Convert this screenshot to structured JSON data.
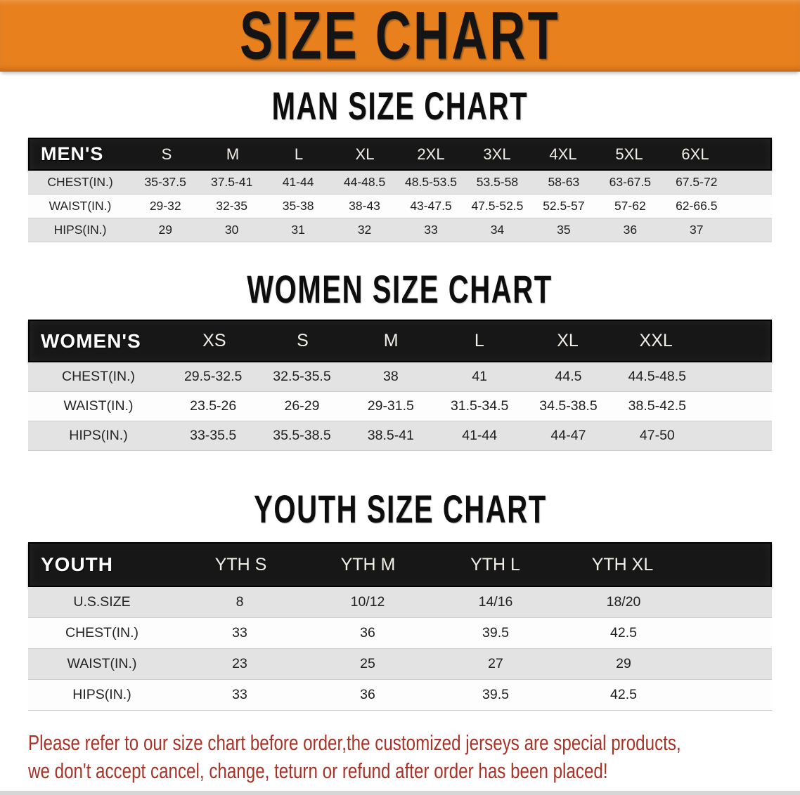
{
  "banner": {
    "title": "SIZE CHART"
  },
  "colors": {
    "banner_bg": "#e8801e",
    "banner_text": "#141414",
    "table_header_bg": "#171717",
    "table_header_text": "#ffffff",
    "row_shade": "#e3e3e3",
    "row_plain": "#fdfdfd",
    "footer_text": "#a93226"
  },
  "sections": [
    {
      "title": "MAN SIZE CHART",
      "header_label": "MEN'S",
      "columns": [
        "S",
        "M",
        "L",
        "XL",
        "2XL",
        "3XL",
        "4XL",
        "5XL",
        "6XL"
      ],
      "rows": [
        {
          "label": "CHEST(IN.)",
          "values": [
            "35-37.5",
            "37.5-41",
            "41-44",
            "44-48.5",
            "48.5-53.5",
            "53.5-58",
            "58-63",
            "63-67.5",
            "67.5-72"
          ]
        },
        {
          "label": "WAIST(IN.)",
          "values": [
            "29-32",
            "32-35",
            "35-38",
            "38-43",
            "43-47.5",
            "47.5-52.5",
            "52.5-57",
            "57-62",
            "62-66.5"
          ]
        },
        {
          "label": "HIPS(IN.)",
          "values": [
            "29",
            "30",
            "31",
            "32",
            "33",
            "34",
            "35",
            "36",
            "37"
          ]
        }
      ]
    },
    {
      "title": "WOMEN SIZE CHART",
      "header_label": "WOMEN'S",
      "columns": [
        "XS",
        "S",
        "M",
        "L",
        "XL",
        "XXL"
      ],
      "rows": [
        {
          "label": "CHEST(IN.)",
          "values": [
            "29.5-32.5",
            "32.5-35.5",
            "38",
            "41",
            "44.5",
            "44.5-48.5"
          ]
        },
        {
          "label": "WAIST(IN.)",
          "values": [
            "23.5-26",
            "26-29",
            "29-31.5",
            "31.5-34.5",
            "34.5-38.5",
            "38.5-42.5"
          ]
        },
        {
          "label": "HIPS(IN.)",
          "values": [
            "33-35.5",
            "35.5-38.5",
            "38.5-41",
            "41-44",
            "44-47",
            "47-50"
          ]
        }
      ]
    },
    {
      "title": "YOUTH SIZE CHART",
      "header_label": "YOUTH",
      "columns": [
        "YTH S",
        "YTH M",
        "YTH L",
        "YTH XL"
      ],
      "rows": [
        {
          "label": "U.S.SIZE",
          "values": [
            "8",
            "10/12",
            "14/16",
            "18/20"
          ]
        },
        {
          "label": "CHEST(IN.)",
          "values": [
            "33",
            "36",
            "39.5",
            "42.5"
          ]
        },
        {
          "label": "WAIST(IN.)",
          "values": [
            "23",
            "25",
            "27",
            "29"
          ]
        },
        {
          "label": "HIPS(IN.)",
          "values": [
            "33",
            "36",
            "39.5",
            "42.5"
          ]
        }
      ]
    }
  ],
  "footer": {
    "line1": "Please refer to our size chart before order,the customized jerseys are special products,",
    "line2": "we don't accept cancel, change, teturn or refund after order has been placed!"
  }
}
